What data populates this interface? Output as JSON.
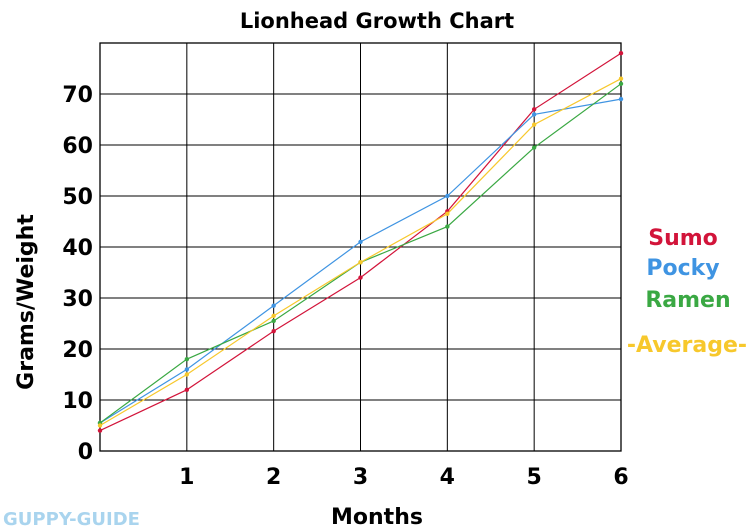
{
  "colors": {
    "sumo": "#d2143a",
    "pocky": "#3f94e2",
    "ramen": "#3aa843",
    "average": "#f7c82c",
    "watermark": "#a9d4ee",
    "grid": "#000000"
  },
  "watermark": "GUPPY-GUIDE",
  "chart_data": {
    "type": "line",
    "title": "Lionhead Growth Chart",
    "xlabel": "Months",
    "ylabel": "Grams/Weight",
    "x": [
      0,
      1,
      2,
      3,
      4,
      5,
      6
    ],
    "x_tick_labels": [
      "1",
      "2",
      "3",
      "4",
      "5",
      "6"
    ],
    "y_tick_labels": [
      "0",
      "10",
      "20",
      "30",
      "40",
      "50",
      "60",
      "70"
    ],
    "xlim": [
      0,
      6
    ],
    "ylim": [
      0,
      80
    ],
    "grid": true,
    "legend_position": "right",
    "series": [
      {
        "name": "Sumo",
        "color": "#d2143a",
        "values": [
          4,
          12,
          23.5,
          34,
          47,
          67,
          78
        ]
      },
      {
        "name": "Pocky",
        "color": "#3f94e2",
        "values": [
          5.5,
          16,
          28.5,
          41,
          50,
          66,
          69
        ]
      },
      {
        "name": "Ramen",
        "color": "#3aa843",
        "values": [
          5.5,
          18,
          25.5,
          37,
          44,
          59.5,
          72
        ]
      },
      {
        "name": "-Average-",
        "color": "#f7c82c",
        "values": [
          5,
          15,
          26.5,
          37,
          46.5,
          64,
          73
        ]
      }
    ]
  }
}
